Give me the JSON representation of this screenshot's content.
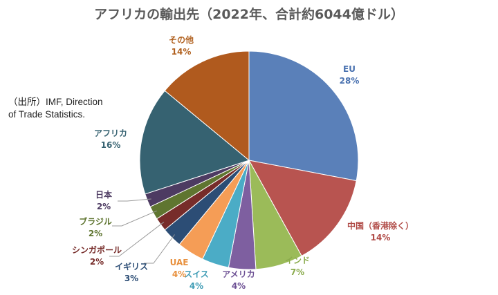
{
  "page": {
    "title": "アフリカの輸出先（2022年、合計約6044億ドル）",
    "source_line1": "（出所）IMF, Direction",
    "source_line2": "of Trade Statistics."
  },
  "chart_data": {
    "type": "pie",
    "title": "アフリカの輸出先（2022年、合計約6044億ドル）",
    "slices": [
      {
        "name": "EU",
        "value": 28,
        "label": "28%",
        "color": "#5a80b9"
      },
      {
        "name": "中国（香港除く）",
        "value": 14,
        "label": "14%",
        "color": "#b85450"
      },
      {
        "name": "インド",
        "value": 7,
        "label": "7%",
        "color": "#9bbb59"
      },
      {
        "name": "アメリカ",
        "value": 4,
        "label": "4%",
        "color": "#7e5fa0"
      },
      {
        "name": "スイス",
        "value": 4,
        "label": "4%",
        "color": "#4bacc6"
      },
      {
        "name": "UAE",
        "value": 4,
        "label": "4%",
        "color": "#f59d56"
      },
      {
        "name": "イギリス",
        "value": 3,
        "label": "3%",
        "color": "#2c4d75"
      },
      {
        "name": "シンガポール",
        "value": 2,
        "label": "2%",
        "color": "#772c2a"
      },
      {
        "name": "ブラジル",
        "value": 2,
        "label": "2%",
        "color": "#5f7530"
      },
      {
        "name": "日本",
        "value": 2,
        "label": "2%",
        "color": "#4d3b62"
      },
      {
        "name": "アフリカ",
        "value": 16,
        "label": "16%",
        "color": "#366271"
      },
      {
        "name": "その他",
        "value": 14,
        "label": "14%",
        "color": "#b05a1e"
      }
    ],
    "label_colors": {
      "EU": "#4a72b0",
      "中国（香港除く）": "#b04a46",
      "インド": "#8aab4c",
      "アメリカ": "#6e5295",
      "スイス": "#3f9cb5",
      "UAE": "#e8913f",
      "イギリス": "#2c4d75",
      "シンガポール": "#772c2a",
      "ブラジル": "#5f7530",
      "日本": "#4d3b62",
      "アフリカ": "#366271",
      "その他": "#b0601e"
    }
  }
}
